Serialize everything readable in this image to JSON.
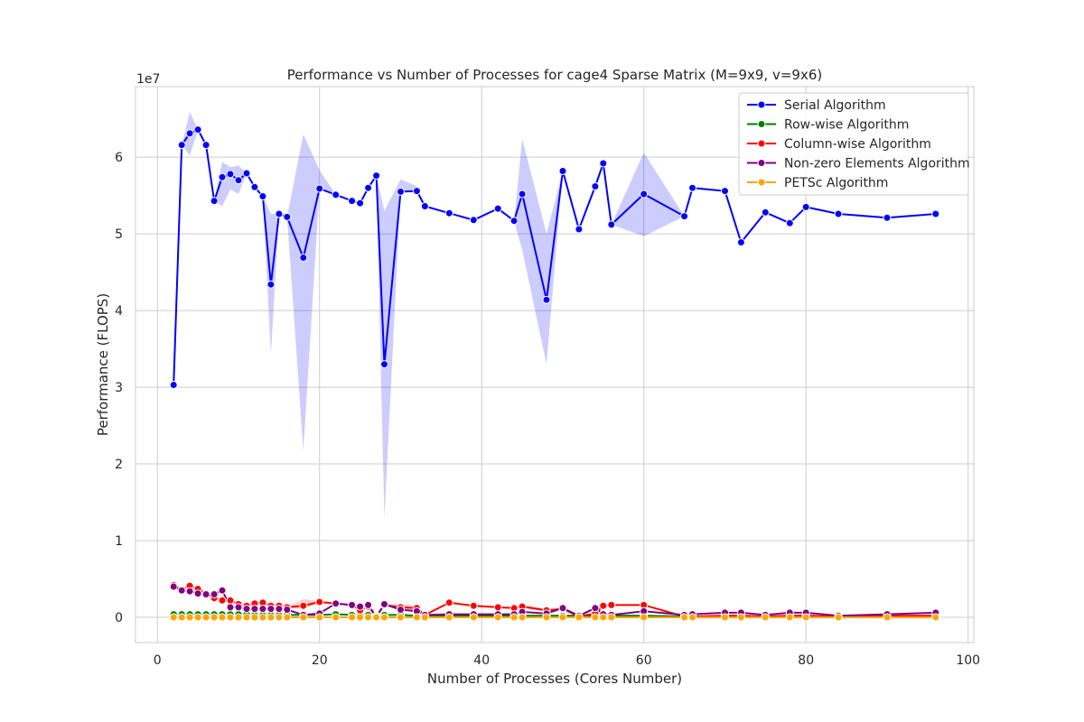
{
  "chart_data": {
    "type": "line",
    "title": "Performance vs Number of Processes for cage4 Sparse Matrix (M=9x9, v=9x6)",
    "xlabel": "Number of Processes (Cores Number)",
    "ylabel": "Performance (FLOPS)",
    "y_offset_label": "1e7",
    "xlim": [
      -2.7,
      100.7
    ],
    "ylim": [
      -3300000,
      69200000
    ],
    "xticks": [
      0,
      20,
      40,
      60,
      80,
      100
    ],
    "yticks": [
      0,
      10000000,
      20000000,
      30000000,
      40000000,
      50000000,
      60000000
    ],
    "ytick_labels": [
      "0",
      "1",
      "2",
      "3",
      "4",
      "5",
      "6"
    ],
    "grid": true,
    "legend_position": "top-right",
    "series": [
      {
        "name": "Serial Algorithm",
        "color": "#0000ff",
        "x": [
          2,
          3,
          4,
          5,
          6,
          7,
          8,
          9,
          10,
          11,
          12,
          13,
          14,
          15,
          16,
          18,
          20,
          22,
          24,
          25,
          26,
          27,
          28,
          30,
          32,
          33,
          36,
          39,
          42,
          44,
          45,
          48,
          50,
          52,
          54,
          55,
          56,
          60,
          65,
          66,
          70,
          72,
          75,
          78,
          80,
          84,
          90,
          96
        ],
        "y": [
          30300000,
          61600000,
          63100000,
          63600000,
          61600000,
          54300000,
          57400000,
          57800000,
          57000000,
          57900000,
          56100000,
          54900000,
          43400000,
          52600000,
          52200000,
          46900000,
          55900000,
          55100000,
          54300000,
          54000000,
          56000000,
          57600000,
          33000000,
          55500000,
          55600000,
          53600000,
          52700000,
          51800000,
          53300000,
          51700000,
          55200000,
          41400000,
          58200000,
          50600000,
          56200000,
          59200000,
          51200000,
          55200000,
          52300000,
          56000000,
          55600000,
          48900000,
          52800000,
          51400000,
          53500000,
          52600000,
          52100000,
          52600000
        ],
        "band_low": [
          30300000,
          61600000,
          60200000,
          63600000,
          61600000,
          54300000,
          53600000,
          55800000,
          55200000,
          57900000,
          56100000,
          54900000,
          34300000,
          52600000,
          52200000,
          21700000,
          55900000,
          55100000,
          54300000,
          54000000,
          56000000,
          57600000,
          12900000,
          55500000,
          55600000,
          53600000,
          52700000,
          51800000,
          53300000,
          51700000,
          47900000,
          33000000,
          58200000,
          50600000,
          56200000,
          59200000,
          51200000,
          49700000,
          52300000,
          56000000,
          55600000,
          48900000,
          52800000,
          51400000,
          53500000,
          52600000,
          52100000,
          52600000
        ],
        "band_high": [
          30300000,
          61600000,
          65900000,
          63600000,
          61600000,
          54300000,
          59400000,
          58700000,
          58900000,
          57900000,
          56100000,
          54900000,
          52600000,
          52600000,
          52200000,
          63000000,
          58300000,
          55100000,
          54300000,
          54000000,
          56000000,
          57600000,
          53000000,
          57100000,
          56200000,
          53600000,
          52700000,
          51800000,
          53300000,
          51700000,
          62400000,
          50000000,
          58200000,
          50600000,
          56200000,
          59200000,
          51200000,
          60600000,
          52300000,
          56000000,
          55600000,
          48900000,
          52800000,
          51400000,
          53500000,
          52600000,
          52100000,
          52600000
        ]
      },
      {
        "name": "Row-wise Algorithm",
        "color": "#008000",
        "x": [
          2,
          3,
          4,
          5,
          6,
          7,
          8,
          9,
          10,
          11,
          12,
          13,
          14,
          15,
          16,
          18,
          20,
          22,
          24,
          25,
          26,
          27,
          28,
          30,
          32,
          33,
          36,
          39,
          42,
          44,
          45,
          48,
          50,
          52,
          54,
          55,
          56,
          60,
          65,
          66,
          70,
          72,
          75,
          78,
          80,
          84,
          90,
          96
        ],
        "y": [
          400000,
          400000,
          400000,
          400000,
          400000,
          400000,
          400000,
          400000,
          400000,
          400000,
          300000,
          300000,
          300000,
          300000,
          300000,
          300000,
          300000,
          400000,
          300000,
          300000,
          300000,
          200000,
          300000,
          300000,
          200000,
          200000,
          200000,
          200000,
          200000,
          200000,
          200000,
          200000,
          200000,
          200000,
          200000,
          200000,
          200000,
          200000,
          100000,
          100000,
          100000,
          100000,
          100000,
          100000,
          100000,
          100000,
          100000,
          100000
        ]
      },
      {
        "name": "Column-wise Algorithm",
        "color": "#ff0000",
        "x": [
          2,
          3,
          4,
          5,
          6,
          7,
          8,
          9,
          10,
          11,
          12,
          13,
          14,
          15,
          16,
          18,
          20,
          22,
          24,
          25,
          26,
          27,
          28,
          30,
          32,
          33,
          36,
          39,
          42,
          44,
          45,
          48,
          50,
          52,
          54,
          55,
          56,
          60,
          65,
          66,
          70,
          72,
          75,
          78,
          80,
          84,
          90,
          96
        ],
        "y": [
          4200000,
          3600000,
          4100000,
          3700000,
          3100000,
          2500000,
          2200000,
          2200000,
          1700000,
          1500000,
          1800000,
          1900000,
          1500000,
          1500000,
          1300000,
          1500000,
          2000000,
          1800000,
          1600000,
          900000,
          1400000,
          100000,
          1600000,
          1300000,
          1200000,
          300000,
          1900000,
          1500000,
          1300000,
          1200000,
          1400000,
          900000,
          1100000,
          100000,
          500000,
          1500000,
          1600000,
          1600000,
          100000,
          100000,
          200000,
          200000,
          100000,
          200000,
          200000,
          100000,
          200000,
          200000
        ],
        "band_low": [
          4000000,
          3600000,
          3900000,
          3700000,
          3100000,
          2500000,
          2200000,
          2200000,
          1700000,
          1500000,
          1800000,
          1900000,
          1500000,
          1500000,
          1300000,
          1000000,
          2000000,
          1800000,
          1600000,
          900000,
          1400000,
          100000,
          1600000,
          1000000,
          900000,
          300000,
          1900000,
          1500000,
          1300000,
          1200000,
          1200000,
          700000,
          1100000,
          100000,
          500000,
          1500000,
          1600000,
          1600000,
          100000,
          100000,
          200000,
          200000,
          100000,
          200000,
          200000,
          100000,
          200000,
          200000
        ],
        "band_high": [
          4400000,
          3600000,
          4300000,
          3700000,
          3100000,
          2500000,
          2200000,
          2200000,
          1700000,
          1500000,
          1800000,
          1900000,
          1500000,
          1500000,
          1300000,
          2400000,
          2100000,
          1800000,
          1600000,
          900000,
          1400000,
          100000,
          1600000,
          1800000,
          1500000,
          300000,
          1900000,
          1500000,
          1300000,
          1200000,
          1600000,
          1100000,
          1100000,
          100000,
          500000,
          1500000,
          1600000,
          1600000,
          100000,
          100000,
          200000,
          200000,
          100000,
          200000,
          200000,
          100000,
          200000,
          200000
        ]
      },
      {
        "name": "Non-zero Elements Algorithm",
        "color": "#800080",
        "x": [
          2,
          3,
          4,
          5,
          6,
          7,
          8,
          9,
          10,
          11,
          12,
          13,
          14,
          15,
          16,
          18,
          20,
          22,
          24,
          25,
          26,
          27,
          28,
          30,
          32,
          33,
          36,
          39,
          42,
          44,
          45,
          48,
          50,
          52,
          54,
          55,
          56,
          60,
          65,
          66,
          70,
          72,
          75,
          78,
          80,
          84,
          90,
          96
        ],
        "y": [
          4000000,
          3500000,
          3400000,
          3100000,
          3000000,
          3000000,
          3500000,
          1300000,
          1300000,
          1100000,
          1100000,
          1100000,
          1100000,
          1100000,
          1000000,
          300000,
          500000,
          1800000,
          1600000,
          1400000,
          1600000,
          100000,
          1700000,
          1000000,
          800000,
          300000,
          400000,
          400000,
          400000,
          400000,
          700000,
          500000,
          1200000,
          200000,
          1200000,
          400000,
          300000,
          800000,
          300000,
          400000,
          600000,
          600000,
          300000,
          600000,
          600000,
          200000,
          400000,
          600000
        ]
      },
      {
        "name": "PETSc Algorithm",
        "color": "#ffa500",
        "x": [
          2,
          3,
          4,
          5,
          6,
          7,
          8,
          9,
          10,
          11,
          12,
          13,
          14,
          15,
          16,
          18,
          20,
          22,
          24,
          25,
          26,
          27,
          28,
          30,
          32,
          33,
          36,
          39,
          42,
          44,
          45,
          48,
          50,
          52,
          54,
          55,
          56,
          60,
          65,
          66,
          70,
          72,
          75,
          78,
          80,
          84,
          90,
          96
        ],
        "y": [
          0,
          0,
          0,
          0,
          0,
          0,
          0,
          0,
          0,
          0,
          0,
          0,
          0,
          0,
          0,
          0,
          0,
          0,
          0,
          0,
          0,
          0,
          0,
          0,
          0,
          0,
          0,
          0,
          0,
          0,
          0,
          0,
          0,
          0,
          0,
          0,
          0,
          0,
          0,
          0,
          0,
          0,
          0,
          0,
          0,
          0,
          0,
          0
        ]
      }
    ]
  }
}
